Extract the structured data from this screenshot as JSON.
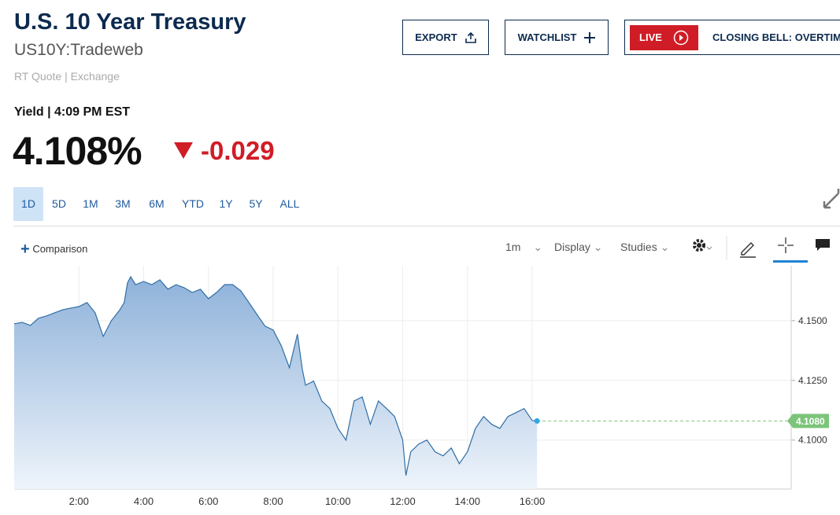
{
  "header": {
    "title": "U.S. 10 Year Treasury",
    "symbol": "US10Y:Tradeweb",
    "quote_type": "RT Quote | Exchange",
    "buttons": [
      "EXPORT",
      "WATCHLIST"
    ],
    "live": "LIVE",
    "live_show": "CLOSING BELL: OVERTIME"
  },
  "quote": {
    "label": "Yield | 4:09 PM EST",
    "price": "4.108%",
    "change": "-0.029"
  },
  "ranges": [
    "1D",
    "5D",
    "1M",
    "3M",
    "6M",
    "YTD",
    "1Y",
    "5Y",
    "ALL"
  ],
  "active_range": "1D",
  "toolbar": {
    "comparison": "Comparison",
    "interval": "1m",
    "display": "Display",
    "studies": "Studies"
  },
  "chart_data": {
    "type": "line",
    "color": "#2f6ea5",
    "grid": true,
    "x": [
      0,
      0.25,
      0.5,
      0.75,
      1,
      1.25,
      1.5,
      1.75,
      2,
      2.25,
      2.5,
      2.75,
      3,
      3.25,
      3.4,
      3.5,
      3.6,
      3.75,
      4,
      4.25,
      4.5,
      4.75,
      5,
      5.25,
      5.5,
      5.75,
      6,
      6.25,
      6.5,
      6.75,
      7,
      7.25,
      7.5,
      7.75,
      8,
      8.25,
      8.5,
      8.75,
      8.9,
      9,
      9.25,
      9.5,
      9.75,
      10,
      10.25,
      10.5,
      10.75,
      11,
      11.25,
      11.5,
      11.75,
      12,
      12.1,
      12.25,
      12.5,
      12.75,
      13,
      13.25,
      13.5,
      13.75,
      14,
      14.25,
      14.5,
      14.75,
      15,
      15.25,
      15.5,
      15.75,
      16,
      16.15
    ],
    "values": [
      4.1487,
      4.1493,
      4.148,
      4.151,
      4.152,
      4.1533,
      4.1546,
      4.1553,
      4.1559,
      4.1576,
      4.1533,
      4.1434,
      4.15,
      4.1543,
      4.1576,
      4.1658,
      4.1684,
      4.1651,
      4.1664,
      4.1651,
      4.1671,
      4.1632,
      4.1651,
      4.1638,
      4.1618,
      4.1632,
      4.1592,
      4.1618,
      4.1651,
      4.1651,
      4.1625,
      4.1576,
      4.1526,
      4.1477,
      4.1461,
      4.1395,
      4.1303,
      4.1444,
      4.1296,
      4.123,
      4.1247,
      4.1164,
      4.1132,
      4.1049,
      4.1,
      4.1164,
      4.1181,
      4.1066,
      4.1164,
      4.1132,
      4.1099,
      4.1,
      4.0852,
      4.0951,
      4.0984,
      4.1,
      4.0951,
      4.0934,
      4.0967,
      4.0901,
      4.0951,
      4.1049,
      4.1099,
      4.1066,
      4.1049,
      4.1099,
      4.1115,
      4.1132,
      4.1082,
      4.108
    ],
    "xlim": [
      0,
      24
    ],
    "xticks": [
      {
        "value": 2,
        "label": "2:00"
      },
      {
        "value": 4,
        "label": "4:00"
      },
      {
        "value": 6,
        "label": "6:00"
      },
      {
        "value": 8,
        "label": "8:00"
      },
      {
        "value": 10,
        "label": "10:00"
      },
      {
        "value": 12,
        "label": "12:00"
      },
      {
        "value": 14,
        "label": "14:00"
      },
      {
        "value": 16,
        "label": "16:00"
      }
    ],
    "ylim": [
      4.0795,
      4.173
    ],
    "yticks": [
      {
        "value": 4.1,
        "label": "4.1000"
      },
      {
        "value": 4.125,
        "label": "4.1250"
      },
      {
        "value": 4.15,
        "label": "4.1500"
      }
    ],
    "current": {
      "value": 4.108,
      "label": "4.1080",
      "color": "#7cc47a"
    }
  }
}
